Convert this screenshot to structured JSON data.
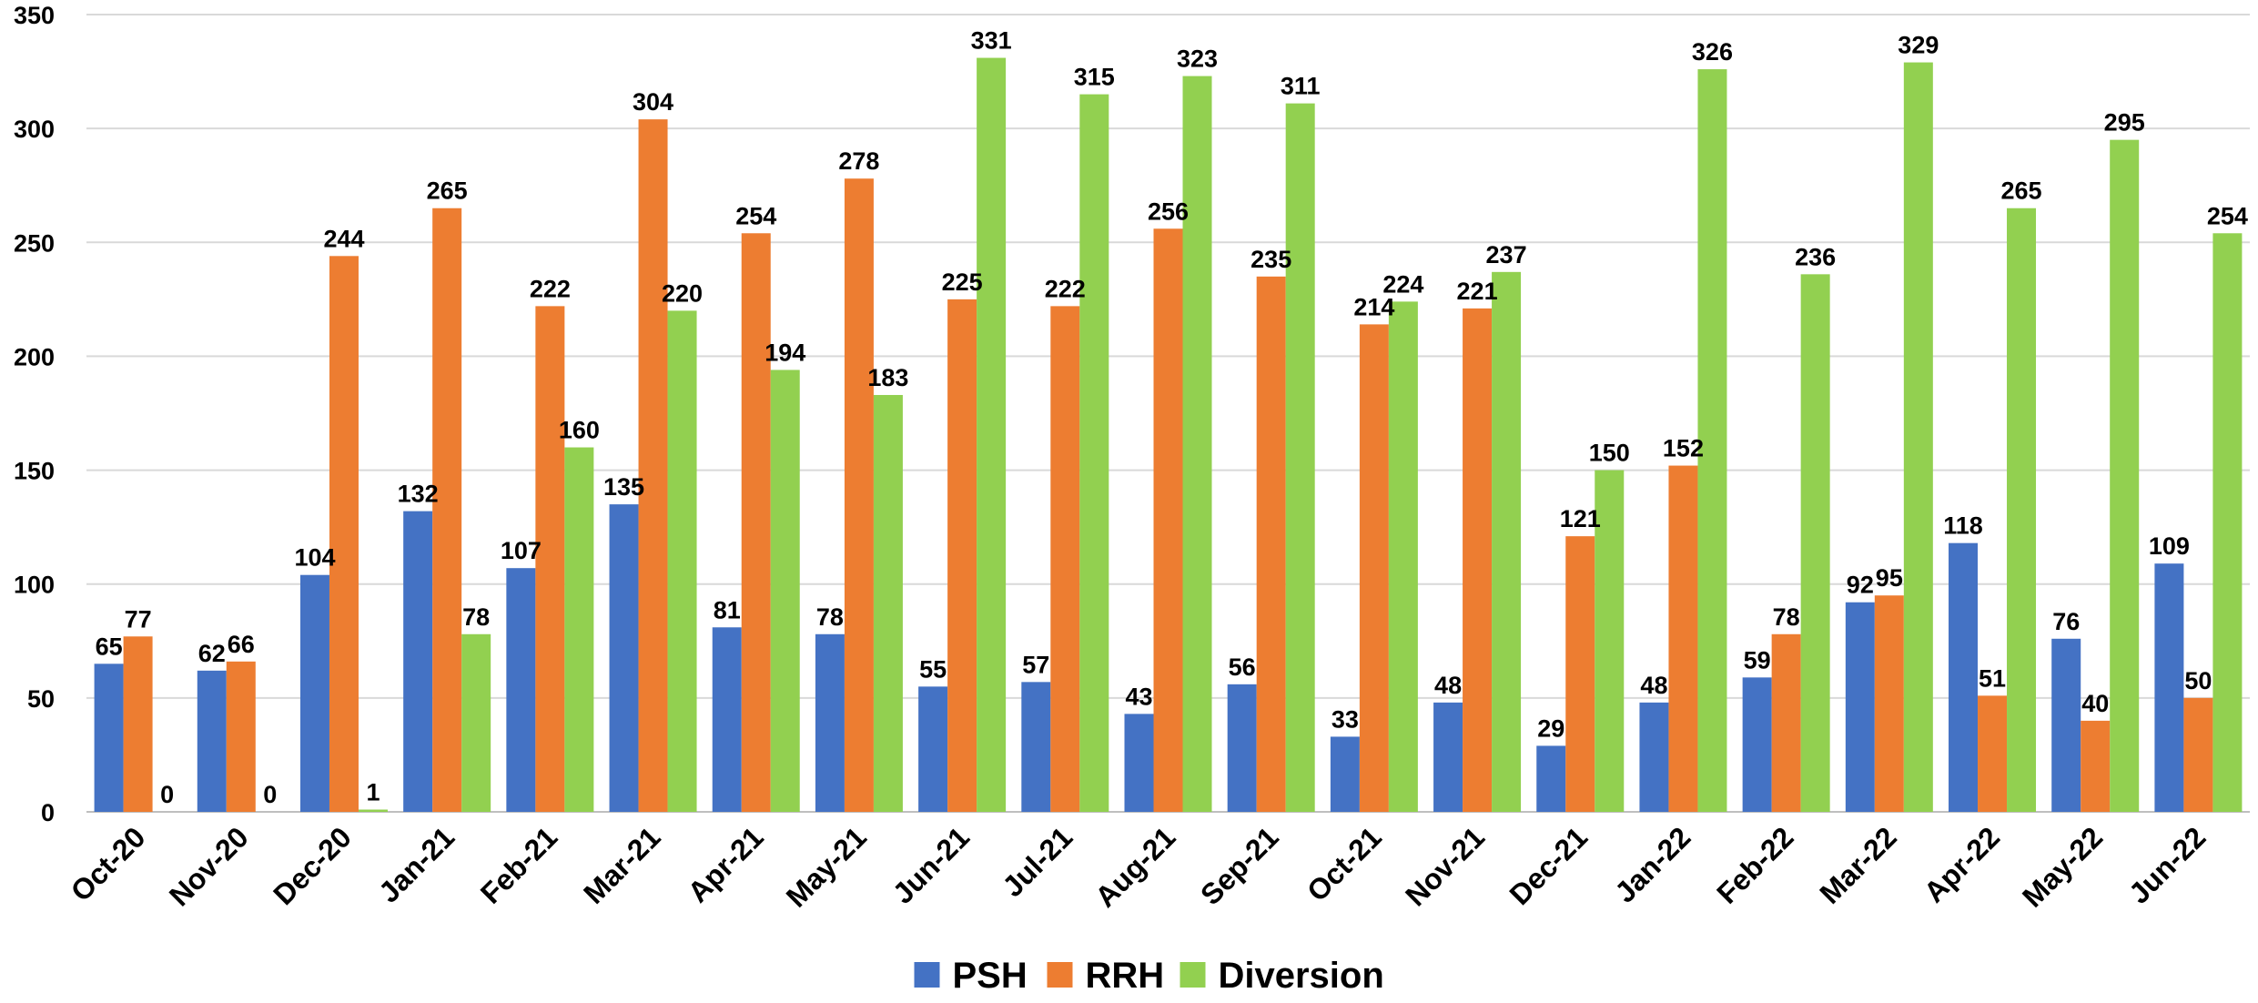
{
  "chart_data": {
    "type": "bar",
    "title": "",
    "xlabel": "",
    "ylabel": "",
    "ylim": [
      0,
      350
    ],
    "yticks": [
      0,
      50,
      100,
      150,
      200,
      250,
      300,
      350
    ],
    "grid": true,
    "legend_position": "bottom",
    "categories": [
      "Oct-20",
      "Nov-20",
      "Dec-20",
      "Jan-21",
      "Feb-21",
      "Mar-21",
      "Apr-21",
      "May-21",
      "Jun-21",
      "Jul-21",
      "Aug-21",
      "Sep-21",
      "Oct-21",
      "Nov-21",
      "Dec-21",
      "Jan-22",
      "Feb-22",
      "Mar-22",
      "Apr-22",
      "May-22",
      "Jun-22"
    ],
    "series": [
      {
        "name": "PSH",
        "color": "#4472C4",
        "values": [
          65,
          62,
          104,
          132,
          107,
          135,
          81,
          78,
          55,
          57,
          43,
          56,
          33,
          48,
          29,
          48,
          59,
          92,
          118,
          76,
          109
        ]
      },
      {
        "name": "RRH",
        "color": "#ED7D31",
        "values": [
          77,
          66,
          244,
          265,
          222,
          304,
          254,
          278,
          225,
          222,
          256,
          235,
          214,
          221,
          121,
          152,
          78,
          95,
          51,
          40,
          50
        ]
      },
      {
        "name": "Diversion",
        "color": "#92D050",
        "values": [
          0,
          0,
          1,
          78,
          160,
          220,
          194,
          183,
          331,
          315,
          323,
          311,
          224,
          237,
          150,
          326,
          236,
          329,
          265,
          295,
          254
        ]
      }
    ]
  }
}
